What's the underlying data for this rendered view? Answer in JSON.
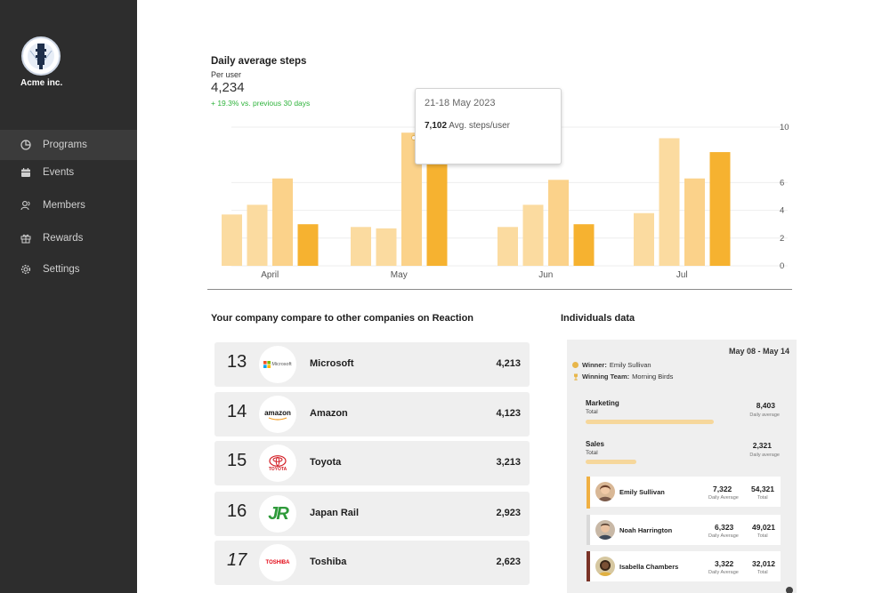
{
  "sidebar": {
    "brand": "Acme inc.",
    "items": [
      {
        "label": "Programs",
        "icon": "pie-chart-icon",
        "active": true
      },
      {
        "label": "Events",
        "icon": "calendar-icon",
        "active": false
      },
      {
        "label": "Members",
        "icon": "members-icon",
        "active": false
      },
      {
        "label": "Rewards",
        "icon": "gift-icon",
        "active": false
      },
      {
        "label": "Settings",
        "icon": "gear-icon",
        "active": false
      }
    ]
  },
  "chart_header": {
    "title": "Daily average steps",
    "subtitle": "Per user",
    "value": "4,234",
    "delta": "+ 19.3% vs. previous 30 days"
  },
  "tooltip": {
    "date": "21-18 May 2023",
    "value": "7,102",
    "unit": "Avg. steps/user"
  },
  "chart_data": {
    "type": "bar",
    "categories": [
      "April",
      "May",
      "Jun",
      "Jul"
    ],
    "yticks": [
      0,
      2,
      4,
      6,
      10
    ],
    "ylim": [
      0,
      10
    ],
    "grid": true,
    "series": [
      {
        "values": [
          3.7,
          2.8,
          2.8,
          3.8
        ],
        "color": "#fbdba0"
      },
      {
        "values": [
          4.4,
          2.7,
          4.4,
          9.2
        ],
        "color": "#fbdba0"
      },
      {
        "values": [
          6.3,
          9.6,
          6.2,
          6.3
        ],
        "color": "#fbd28a"
      },
      {
        "values": [
          3.0,
          7.8,
          3.0,
          8.2
        ],
        "color": "#f6b230"
      }
    ]
  },
  "companies": {
    "title": "Your company compare to other companies on Reaction",
    "rows": [
      {
        "rank": "13",
        "name": "Microsoft",
        "logo_text": "Microsoft",
        "value": "4,213"
      },
      {
        "rank": "14",
        "name": "Amazon",
        "logo_text": "amazon",
        "value": "4,123"
      },
      {
        "rank": "15",
        "name": "Toyota",
        "logo_text": "TOYOTA",
        "value": "3,213"
      },
      {
        "rank": "16",
        "name": "Japan Rail",
        "logo_text": "JR",
        "value": "2,923"
      },
      {
        "rank": "17",
        "name": "Toshiba",
        "logo_text": "TOSHIBA",
        "value": "2,623"
      }
    ]
  },
  "individuals": {
    "title": "Individuals data",
    "date_range": "May 08 - May 14",
    "winner_label": "Winner:",
    "winner": "Emily Sullivan",
    "team_label": "Winning Team:",
    "team": "Morning Birds",
    "teams": [
      {
        "name": "Marketing",
        "sub": "Total",
        "value": "8,403",
        "value_sub": "Daily average",
        "fill": 0.86
      },
      {
        "name": "Sales",
        "sub": "Total",
        "value": "2,321",
        "value_sub": "Daily average",
        "fill": 0.34
      }
    ],
    "people": [
      {
        "name": "Emily Sullivan",
        "daily": "7,322",
        "daily_label": "Daily Average",
        "total": "54,321",
        "total_label": "Total",
        "strip": "#f0b042"
      },
      {
        "name": "Noah Harrington",
        "daily": "6,323",
        "daily_label": "Daily Average",
        "total": "49,021",
        "total_label": "Total",
        "strip": "#d9d9d9"
      },
      {
        "name": "Isabella Chambers",
        "daily": "3,322",
        "daily_label": "Daily Average",
        "total": "32,012",
        "total_label": "Total",
        "strip": "#7a3327"
      }
    ]
  }
}
